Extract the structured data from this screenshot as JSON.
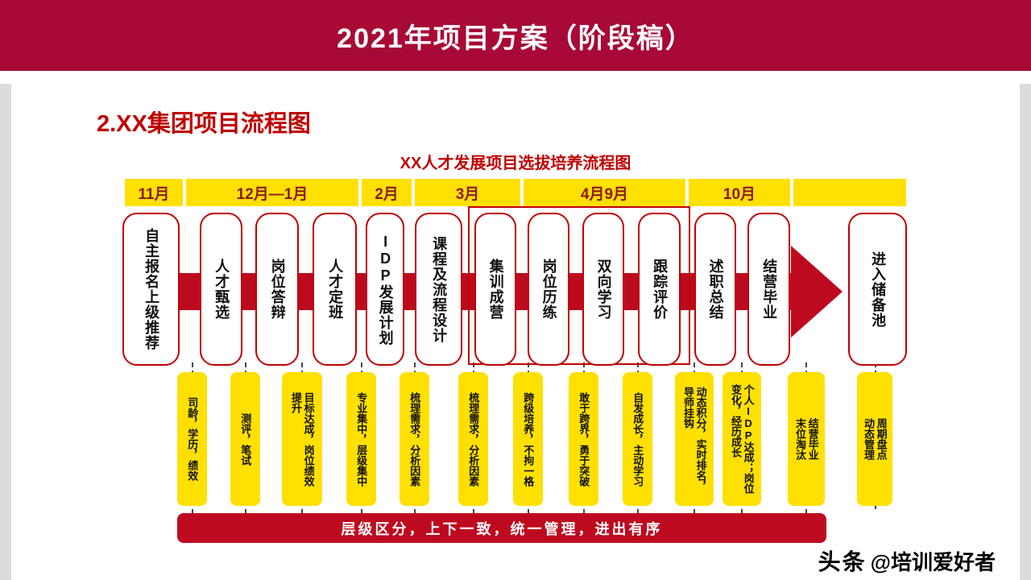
{
  "slide": {
    "banner_title": "2021年项目方案（阶段稿）",
    "section_title": "2.XX集团项目流程图",
    "diagram_title": "XX人才发展项目选拔培养流程图",
    "bottom_banner": "层级区分，上下一致，统一管理，进出有序",
    "watermark_brand": "头条",
    "watermark_handle": "@培训爱好者"
  },
  "timeline_months": [
    "11月",
    "12月—1月",
    "2月",
    "3月",
    "4月9月",
    "10月",
    ""
  ],
  "stages": [
    "自主报名上级推荐",
    "人才甄选",
    "岗位答辩",
    "人才定班",
    "IDP发展计划",
    "课程及流程设计",
    "集训成营",
    "岗位历练",
    "双向学习",
    "跟踪评价",
    "述职总结",
    "结营毕业",
    "进入储备池"
  ],
  "stage_details": [
    "司龄，学历，绩效",
    "测评，笔试",
    "目标达成，岗位绩效\n提升",
    "专业集中，层级集中",
    "梳理需求，分析因素",
    "梳理需求，分析因素",
    "跨级培养，不拘一格",
    "敢于跨界，勇于突破",
    "自发成长，主动学习",
    "动态积分，实时排名，\n导师挂钩",
    "个人IDP达成；岗位\n变化，经历成长",
    "结营毕业\n末位淘汰",
    "周期盘点\n动态管理"
  ],
  "colors": {
    "banner_red": "#A80936",
    "flow_red": "#BE0A1F",
    "accent_red": "#C00000",
    "yellow": "#FFE000",
    "month_text": "#8B1A1A"
  }
}
